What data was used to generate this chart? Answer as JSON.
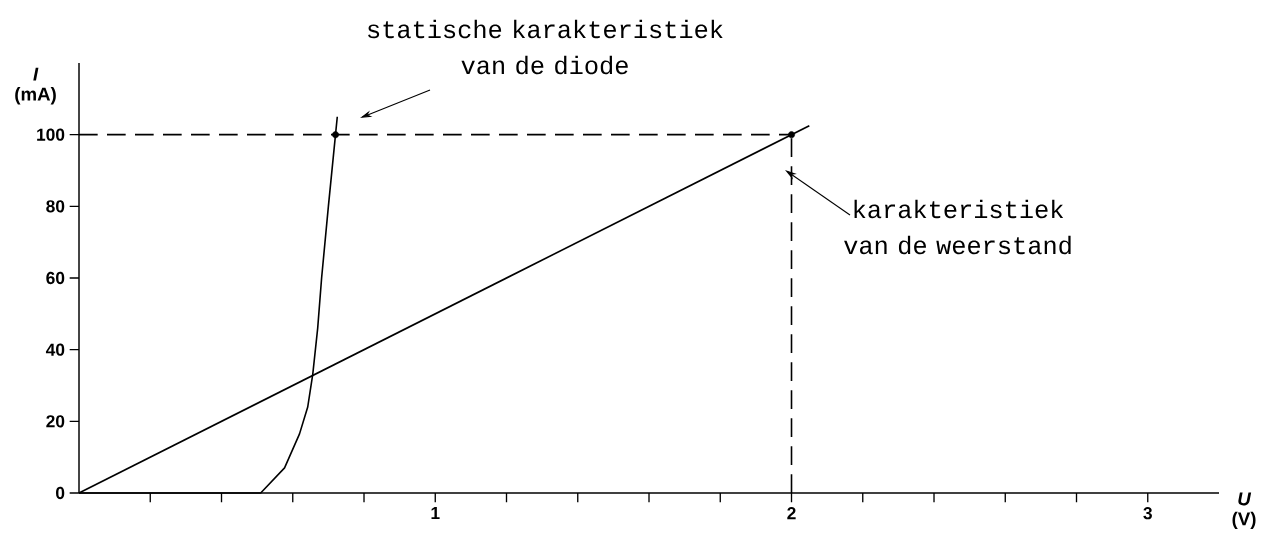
{
  "chart_data": {
    "type": "line",
    "xlabel": "*U* (V)",
    "ylabel": "*I* (mA)",
    "xlim": [
      0,
      3.2
    ],
    "ylim": [
      0,
      120
    ],
    "xticks": [
      {
        "value": 0.2,
        "label": null
      },
      {
        "value": 0.4,
        "label": null
      },
      {
        "value": 0.6,
        "label": null
      },
      {
        "value": 0.8,
        "label": null
      },
      1,
      {
        "value": 1.2,
        "label": null
      },
      {
        "value": 1.4,
        "label": null
      },
      {
        "value": 1.6,
        "label": null
      },
      {
        "value": 1.8,
        "label": null
      },
      2,
      {
        "value": 2.2,
        "label": null
      },
      {
        "value": 2.4,
        "label": null
      },
      {
        "value": 2.6,
        "label": null
      },
      {
        "value": 2.8,
        "label": null
      },
      3
    ],
    "yticks": [
      0,
      20,
      40,
      60,
      80,
      100
    ],
    "series": [
      {
        "color": "#000000",
        "line_style": "solid",
        "x": [
          0,
          0.51,
          0.577,
          0.619,
          0.642,
          0.656,
          0.67,
          0.681,
          0.7,
          0.72,
          0.725
        ],
        "values": [
          0,
          0,
          7,
          16.5,
          24,
          33,
          46,
          60,
          80,
          100,
          105
        ]
      },
      {
        "color": "#000000",
        "line_style": "solid",
        "x": [
          0,
          2.05
        ],
        "values": [
          0,
          102.5
        ]
      },
      {
        "color": "#000000",
        "line_style": "dashed",
        "x": [
          0,
          2
        ],
        "values": [
          100,
          100
        ]
      },
      {
        "color": "#000000",
        "line_style": "dashed",
        "x": [
          2,
          2
        ],
        "values": [
          0,
          100
        ]
      },
      {
        "type": "scatter",
        "color": "#000000",
        "marker": "circle",
        "x": [
          0.72,
          2
        ],
        "values": [
          100,
          100
        ]
      }
    ],
    "annotations": [
      "statische karakteristiek van de diode",
      "karakteristiek van de weerstand"
    ]
  }
}
